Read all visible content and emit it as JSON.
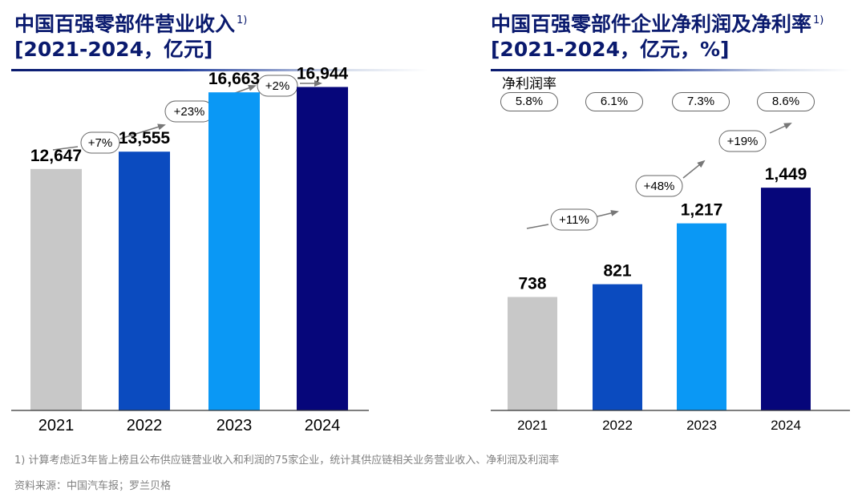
{
  "left_title": {
    "line1": "中国百强零部件营业收入",
    "note": "1)",
    "line2": "[2021-2024，亿元]"
  },
  "right_title": {
    "line1": "中国百强零部件企业净利润及净利率",
    "note": "1)",
    "line2": "[2021-2024，亿元，%]"
  },
  "net_margin": {
    "label": "净利润率",
    "values": [
      "5.8%",
      "6.1%",
      "7.3%",
      "8.6%"
    ]
  },
  "footnotes": {
    "note1": "1) 计算考虑近3年皆上榜且公布供应链营业收入和利润的75家企业，统计其供应链相关业务营业收入、净利润及利润率",
    "source": "资料来源：中国汽车报；罗兰贝格"
  },
  "colors": [
    "#c8c8c8",
    "#0b4bbf",
    "#0a98f5",
    "#06067a"
  ],
  "chart_data": [
    {
      "type": "bar",
      "title": "中国百强零部件营业收入 [2021-2024，亿元]",
      "categories": [
        "2021",
        "2022",
        "2023",
        "2024"
      ],
      "values": [
        12647,
        13555,
        16663,
        16944
      ],
      "value_labels": [
        "12,647",
        "13,555",
        "16,663",
        "16,944"
      ],
      "growth": [
        "+7%",
        "+23%",
        "+2%"
      ],
      "ylim": [
        0,
        21500
      ]
    },
    {
      "type": "bar",
      "title": "中国百强零部件企业净利润及净利率 [2021-2024，亿元，%]",
      "categories": [
        "2021",
        "2022",
        "2023",
        "2024"
      ],
      "values": [
        738,
        821,
        1217,
        1449
      ],
      "value_labels": [
        "738",
        "821",
        "1,217",
        "1,449"
      ],
      "growth": [
        "+11%",
        "+48%",
        "+19%"
      ],
      "net_margin": [
        5.8,
        6.1,
        7.3,
        8.6
      ],
      "ylim": [
        0,
        2670
      ]
    }
  ]
}
